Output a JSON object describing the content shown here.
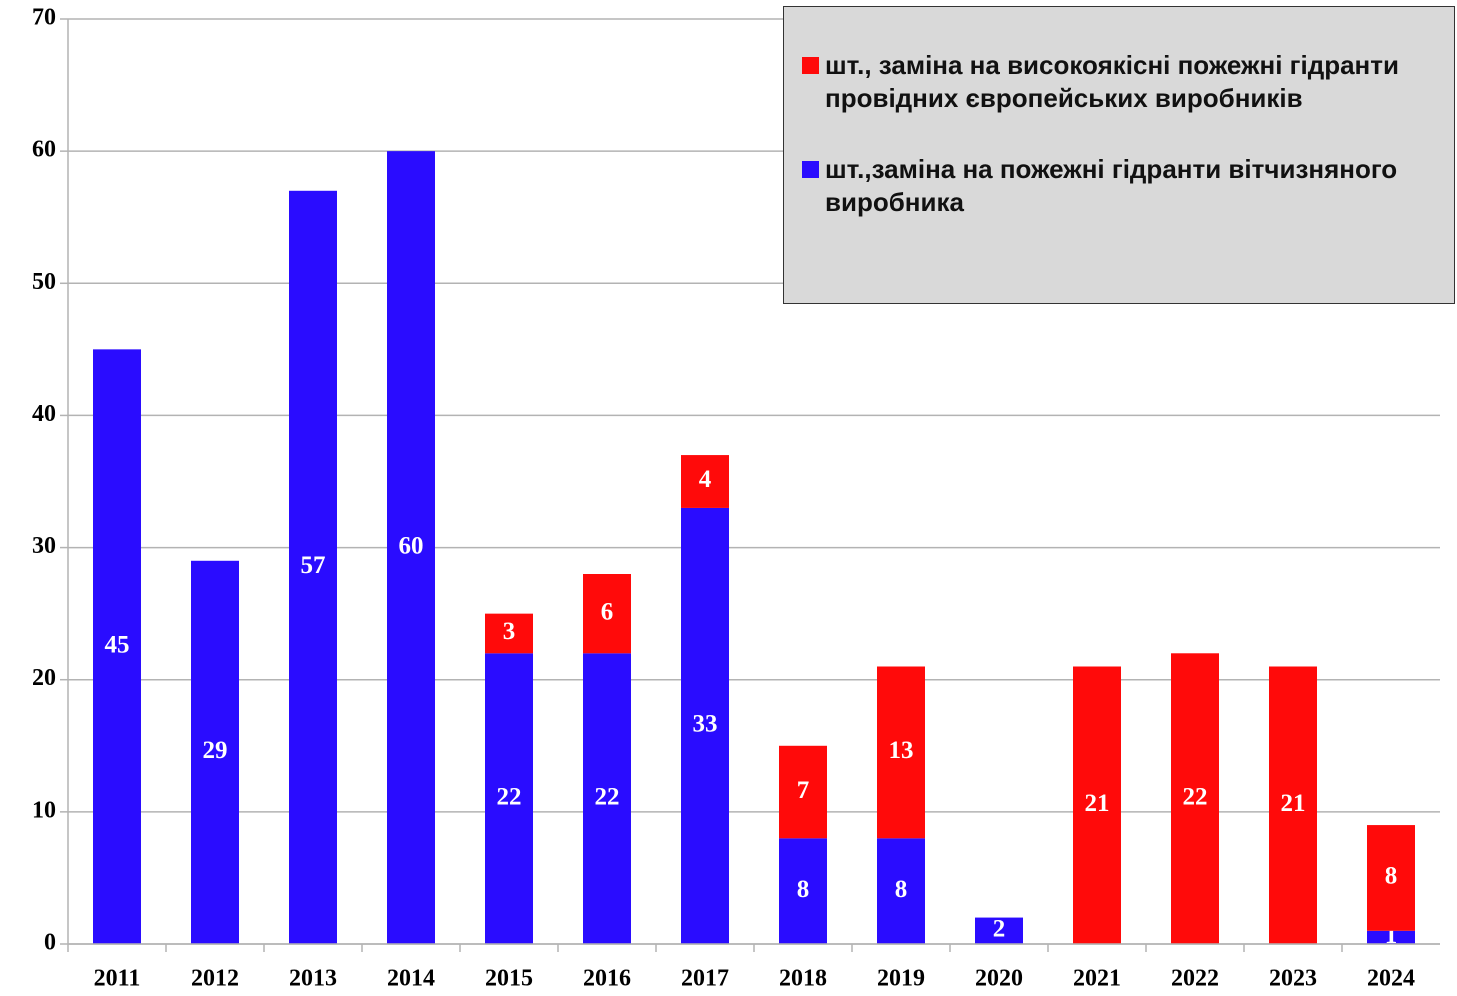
{
  "chart_data": {
    "type": "stacked-bar",
    "categories": [
      "2011",
      "2012",
      "2013",
      "2014",
      "2015",
      "2016",
      "2017",
      "2018",
      "2019",
      "2020",
      "2021",
      "2022",
      "2023",
      "2024"
    ],
    "series": [
      {
        "name": "шт.,заміна на пожежні гідранти вітчизняного виробника",
        "color": "#2a0cff",
        "values": [
          45,
          29,
          57,
          60,
          22,
          22,
          33,
          8,
          8,
          2,
          0,
          0,
          0,
          1
        ]
      },
      {
        "name": "шт., заміна на високоякісні пожежні гідранти провідних європейських виробників",
        "color": "#ff0a0a",
        "values": [
          0,
          0,
          0,
          0,
          3,
          6,
          4,
          7,
          13,
          0,
          21,
          22,
          21,
          8
        ]
      }
    ],
    "ylim": [
      0,
      70
    ],
    "yticks": [
      0,
      10,
      20,
      30,
      40,
      50,
      60,
      70
    ],
    "grid": true,
    "legend": "top-right"
  }
}
